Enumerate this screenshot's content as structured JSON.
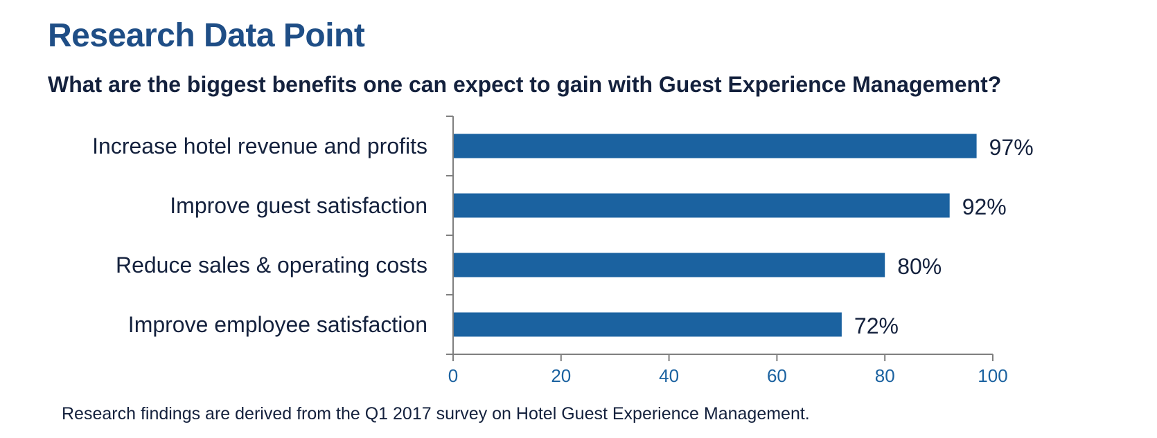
{
  "header": {
    "title": "Research Data Point",
    "question": "What are the biggest benefits one can expect to gain with Guest Experience Management?"
  },
  "footnote": "Research findings are derived from the Q1 2017 survey on Hotel Guest Experience Management.",
  "colors": {
    "bar": "#1b62a0",
    "title": "#1f4e86",
    "text": "#14213d",
    "tick_label": "#1b62a0",
    "axis": "#7f7f7f"
  },
  "chart_data": {
    "type": "bar",
    "orientation": "horizontal",
    "categories": [
      "Increase hotel revenue and profits",
      "Improve guest satisfaction",
      "Reduce sales & operating costs",
      "Improve employee satisfaction"
    ],
    "values": [
      97,
      92,
      80,
      72
    ],
    "data_labels": [
      "97%",
      "92%",
      "80%",
      "72%"
    ],
    "xlim": [
      0,
      100
    ],
    "x_ticks": [
      0,
      20,
      40,
      60,
      80,
      100
    ],
    "grid": false,
    "legend": "none"
  }
}
